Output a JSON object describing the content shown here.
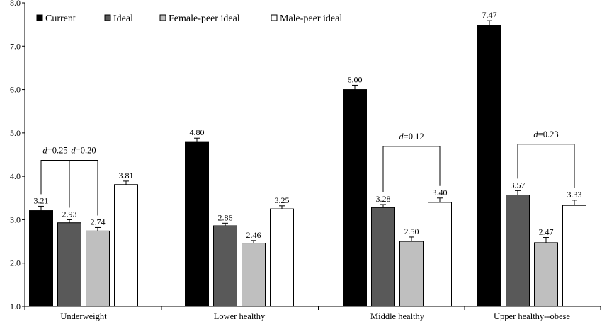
{
  "chart_data": {
    "type": "bar",
    "title": "",
    "xlabel": "",
    "ylabel": "",
    "ylim": [
      1.0,
      8.0
    ],
    "yticks": [
      "1.0",
      "2.0",
      "3.0",
      "4.0",
      "5.0",
      "6.0",
      "7.0",
      "8.0"
    ],
    "grid": false,
    "legend_position": "top-left",
    "categories": [
      "Underweight",
      "Lower healthy",
      "Middle healthy",
      "Upper healthy--obese"
    ],
    "series": [
      {
        "name": "Current",
        "color": "#000000",
        "values": [
          3.21,
          4.8,
          6.0,
          7.47
        ],
        "labels": [
          "3.21",
          "4.80",
          "6.00",
          "7.47"
        ],
        "errors": [
          0.1,
          0.08,
          0.1,
          0.12
        ]
      },
      {
        "name": "Ideal",
        "color": "#595959",
        "values": [
          2.93,
          2.86,
          3.28,
          3.57
        ],
        "labels": [
          "2.93",
          "2.86",
          "3.28",
          "3.57"
        ],
        "errors": [
          0.07,
          0.06,
          0.07,
          0.1
        ]
      },
      {
        "name": "Female-peer ideal",
        "color": "#bfbfbf",
        "values": [
          2.74,
          2.46,
          2.5,
          2.47
        ],
        "labels": [
          "2.74",
          "2.46",
          "2.50",
          "2.47"
        ],
        "errors": [
          0.08,
          0.06,
          0.1,
          0.12
        ]
      },
      {
        "name": "Male-peer ideal",
        "color": "#ffffff",
        "values": [
          3.81,
          3.25,
          3.4,
          3.33
        ],
        "labels": [
          "3.81",
          "3.25",
          "3.40",
          "3.33"
        ],
        "errors": [
          0.08,
          0.07,
          0.1,
          0.12
        ]
      }
    ],
    "annotations": [
      {
        "category": 0,
        "from_series": 0,
        "to_series": 1,
        "italic": "d",
        "text": "=0.25",
        "level": 4.37
      },
      {
        "category": 0,
        "from_series": 1,
        "to_series": 2,
        "italic": "d",
        "text": "=0.20",
        "level": 4.37
      },
      {
        "category": 2,
        "from_series": 1,
        "to_series": 3,
        "italic": "d",
        "text": "=0.12",
        "level": 4.69
      },
      {
        "category": 3,
        "from_series": 1,
        "to_series": 3,
        "italic": "d",
        "text": "=0.23",
        "level": 4.74
      }
    ]
  }
}
